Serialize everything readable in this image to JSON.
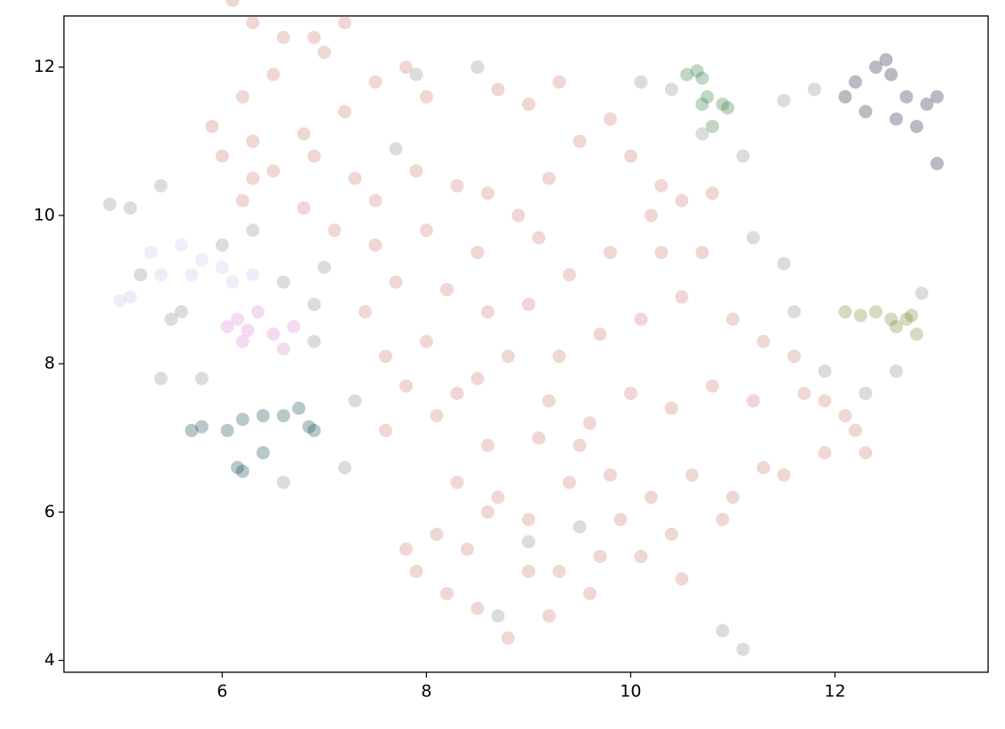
{
  "chart_data": {
    "type": "scatter",
    "xlim": [
      4.45,
      13.5
    ],
    "ylim": [
      3.84,
      12.69
    ],
    "xticks": [
      6,
      8,
      10,
      12
    ],
    "yticks": [
      4,
      6,
      8,
      10,
      12
    ],
    "grid": false,
    "series": [
      {
        "color": "#c97b70",
        "x": [
          6.1,
          6.3,
          6.6,
          6.9,
          7.2,
          7.0,
          6.5,
          6.2,
          5.9,
          6.3,
          6.8,
          7.2,
          7.5,
          7.8,
          8.0,
          6.5,
          6.9,
          7.3,
          6.2,
          6.8,
          7.1,
          7.5,
          7.9,
          7.5,
          8.3,
          8.6,
          8.9,
          9.2,
          9.5,
          9.0,
          8.7,
          9.3,
          9.8,
          10.0,
          10.3,
          10.8,
          10.7,
          10.3,
          9.8,
          9.4,
          9.0,
          8.6,
          8.2,
          7.7,
          7.4,
          8.0,
          7.8,
          7.6,
          8.1,
          8.5,
          8.8,
          9.3,
          9.7,
          10.1,
          10.5,
          11.0,
          11.3,
          11.6,
          11.7,
          11.2,
          10.8,
          10.4,
          10.0,
          9.6,
          9.1,
          8.6,
          8.3,
          8.7,
          9.0,
          9.4,
          9.8,
          10.2,
          10.6,
          11.0,
          11.3,
          11.5,
          11.9,
          12.2,
          12.3,
          10.9,
          10.5,
          10.1,
          9.7,
          9.3,
          9.0,
          8.8,
          8.5,
          8.2,
          7.9,
          7.8,
          8.1,
          8.4,
          8.6,
          9.2,
          9.6,
          9.9,
          10.4,
          9.5,
          11.9,
          12.1,
          10.2,
          10.5,
          9.1,
          8.5,
          8.0,
          7.6,
          9.2,
          8.3,
          6.3,
          6.0
        ],
        "y": [
          12.9,
          12.6,
          12.4,
          12.4,
          12.6,
          12.2,
          11.9,
          11.6,
          11.2,
          11.0,
          11.1,
          11.4,
          11.8,
          12.0,
          11.6,
          10.6,
          10.8,
          10.5,
          10.2,
          10.1,
          9.8,
          10.2,
          10.6,
          9.6,
          10.4,
          10.3,
          10.0,
          10.5,
          11.0,
          11.5,
          11.7,
          11.8,
          11.3,
          10.8,
          10.4,
          10.3,
          9.5,
          9.5,
          9.5,
          9.2,
          8.8,
          8.7,
          9.0,
          9.1,
          8.7,
          8.3,
          7.7,
          7.1,
          7.3,
          7.8,
          8.1,
          8.1,
          8.4,
          8.6,
          8.9,
          8.6,
          8.3,
          8.1,
          7.6,
          7.5,
          7.7,
          7.4,
          7.6,
          7.2,
          7.0,
          6.9,
          6.4,
          6.2,
          5.9,
          6.4,
          6.5,
          6.2,
          6.5,
          6.2,
          6.6,
          6.5,
          6.8,
          7.1,
          6.8,
          5.9,
          5.1,
          5.4,
          5.4,
          5.2,
          5.2,
          4.3,
          4.7,
          4.9,
          5.2,
          5.5,
          5.7,
          5.5,
          6.0,
          4.6,
          4.9,
          5.9,
          5.7,
          6.9,
          7.5,
          7.3,
          10.0,
          10.2,
          9.7,
          9.5,
          9.8,
          8.1,
          7.5,
          7.6,
          10.5,
          10.8
        ]
      },
      {
        "color": "#8a8a8a",
        "x": [
          4.9,
          5.1,
          5.4,
          5.5,
          5.4,
          5.8,
          6.0,
          6.3,
          6.6,
          6.9,
          7.3,
          7.2,
          6.6,
          6.9,
          7.0,
          7.9,
          8.5,
          9.0,
          9.5,
          8.7,
          10.9,
          11.1,
          11.5,
          11.2,
          11.6,
          11.9,
          12.3,
          12.6,
          12.85,
          11.5,
          11.8,
          11.1,
          10.4,
          10.7,
          10.1,
          7.7,
          5.6,
          5.2
        ],
        "y": [
          10.15,
          10.1,
          10.4,
          8.6,
          7.8,
          7.8,
          9.6,
          9.8,
          9.1,
          8.3,
          7.5,
          6.6,
          6.4,
          8.8,
          9.3,
          11.9,
          12.0,
          5.6,
          5.8,
          4.6,
          4.4,
          4.15,
          9.35,
          9.7,
          8.7,
          7.9,
          7.6,
          7.9,
          8.95,
          11.55,
          11.7,
          10.8,
          11.7,
          11.1,
          11.8,
          10.9,
          8.7,
          9.2
        ]
      },
      {
        "color": "#c8c8f2",
        "x": [
          5.0,
          5.1,
          5.3,
          5.4,
          5.6,
          5.8,
          6.0,
          6.1,
          6.3,
          5.7
        ],
        "y": [
          8.85,
          8.9,
          9.5,
          9.2,
          9.6,
          9.4,
          9.3,
          9.1,
          9.2,
          9.2
        ]
      },
      {
        "color": "#d68ad4",
        "x": [
          6.05,
          6.15,
          6.25,
          6.35,
          6.5,
          6.6,
          6.7,
          6.2
        ],
        "y": [
          8.5,
          8.6,
          8.45,
          8.7,
          8.4,
          8.2,
          8.5,
          8.3
        ]
      },
      {
        "color": "#0f4a52",
        "x": [
          5.7,
          5.8,
          6.05,
          6.2,
          6.4,
          6.6,
          6.75,
          6.85,
          6.9,
          6.15,
          6.2,
          6.4
        ],
        "y": [
          7.1,
          7.15,
          7.1,
          7.25,
          7.3,
          7.3,
          7.4,
          7.15,
          7.1,
          6.6,
          6.55,
          6.8
        ]
      },
      {
        "color": "#2e7a3c",
        "x": [
          10.55,
          10.65,
          10.7,
          10.75,
          10.8,
          10.9,
          10.95,
          10.7
        ],
        "y": [
          11.9,
          11.95,
          11.85,
          11.6,
          11.2,
          11.5,
          11.45,
          11.5
        ]
      },
      {
        "color": "#1b1a3c",
        "x": [
          12.2,
          12.4,
          12.5,
          12.55,
          12.7,
          12.9,
          13.0,
          12.8,
          13.0,
          12.3,
          12.6,
          12.1
        ],
        "y": [
          11.8,
          12.0,
          12.1,
          11.9,
          11.6,
          11.5,
          11.6,
          11.2,
          10.7,
          11.4,
          11.3,
          11.6
        ]
      },
      {
        "color": "#7a802e",
        "x": [
          12.1,
          12.25,
          12.4,
          12.55,
          12.7,
          12.75,
          12.8,
          12.6
        ],
        "y": [
          8.7,
          8.65,
          8.7,
          8.6,
          8.6,
          8.65,
          8.4,
          8.5
        ]
      }
    ]
  }
}
